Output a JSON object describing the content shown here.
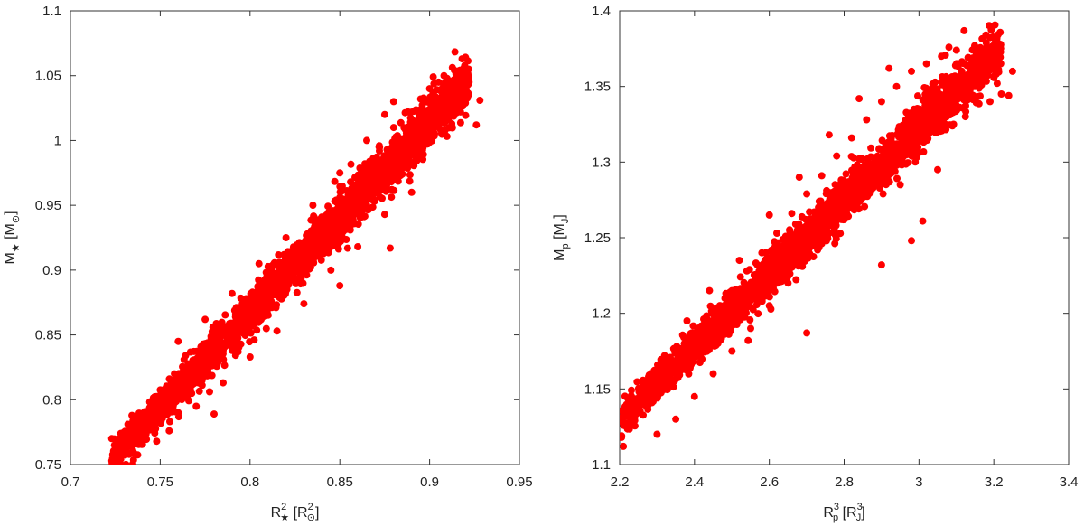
{
  "chart_data": [
    {
      "type": "scatter",
      "panel": "left",
      "title": "",
      "xlabel": {
        "base": "R",
        "sup": "2",
        "sub": "★",
        "unit_base": "R",
        "unit_sup": "2",
        "unit_sub": "⊙"
      },
      "ylabel": {
        "base": "M",
        "sub": "★",
        "unit_base": "M",
        "unit_sub": "⊙"
      },
      "xlim": [
        0.7,
        0.95
      ],
      "ylim": [
        0.75,
        1.1
      ],
      "xticks": [
        "0.7",
        "0.75",
        "0.8",
        "0.85",
        "0.9",
        "0.95"
      ],
      "yticks": [
        "0.75",
        "0.8",
        "0.85",
        "0.9",
        "0.95",
        "1",
        "1.05",
        "1.1"
      ],
      "grid": false,
      "marker_color": "#ff0000",
      "series": [
        {
          "points": [
            [
              0.723,
              0.77
            ],
            [
              0.725,
              0.762
            ],
            [
              0.728,
              0.774
            ],
            [
              0.732,
              0.781
            ],
            [
              0.738,
              0.788
            ],
            [
              0.745,
              0.797
            ],
            [
              0.752,
              0.806
            ],
            [
              0.76,
              0.818
            ],
            [
              0.768,
              0.829
            ],
            [
              0.776,
              0.842
            ],
            [
              0.784,
              0.853
            ],
            [
              0.792,
              0.866
            ],
            [
              0.8,
              0.878
            ],
            [
              0.808,
              0.89
            ],
            [
              0.816,
              0.902
            ],
            [
              0.824,
              0.915
            ],
            [
              0.832,
              0.928
            ],
            [
              0.84,
              0.941
            ],
            [
              0.848,
              0.954
            ],
            [
              0.856,
              0.968
            ],
            [
              0.864,
              0.982
            ],
            [
              0.872,
              0.996
            ],
            [
              0.88,
              1.01
            ],
            [
              0.888,
              1.022
            ],
            [
              0.895,
              1.032
            ],
            [
              0.9,
              1.04
            ],
            [
              0.905,
              1.045
            ],
            [
              0.91,
              1.03
            ],
            [
              0.915,
              1.025
            ],
            [
              0.92,
              1.037
            ],
            [
              0.926,
              1.012
            ],
            [
              0.928,
              1.031
            ],
            [
              0.922,
              1.045
            ],
            [
              0.908,
              1.05
            ],
            [
              0.902,
              1.049
            ],
            [
              0.755,
              0.776
            ],
            [
              0.77,
              0.795
            ],
            [
              0.785,
              0.813
            ],
            [
              0.8,
              0.833
            ],
            [
              0.815,
              0.853
            ],
            [
              0.83,
              0.874
            ],
            [
              0.85,
              0.888
            ],
            [
              0.845,
              0.9
            ],
            [
              0.86,
              0.918
            ],
            [
              0.875,
              0.943
            ],
            [
              0.878,
              0.917
            ],
            [
              0.89,
              0.96
            ],
            [
              0.76,
              0.845
            ],
            [
              0.775,
              0.862
            ],
            [
              0.79,
              0.882
            ],
            [
              0.805,
              0.905
            ],
            [
              0.82,
              0.925
            ],
            [
              0.835,
              0.95
            ],
            [
              0.85,
              0.975
            ],
            [
              0.865,
              1.0
            ],
            [
              0.875,
              1.02
            ],
            [
              0.88,
              1.03
            ],
            [
              0.76,
              0.79
            ],
            [
              0.737,
              0.766
            ],
            [
              0.748,
              0.768
            ],
            [
              0.79,
              0.838
            ],
            [
              0.81,
              0.873
            ],
            [
              0.82,
              0.888
            ],
            [
              0.78,
              0.789
            ]
          ]
        }
      ]
    },
    {
      "type": "scatter",
      "panel": "right",
      "title": "",
      "xlabel": {
        "base": "R",
        "sup": "3",
        "sub": "p",
        "unit_base": "R",
        "unit_sup": "3",
        "unit_sub": "J"
      },
      "ylabel": {
        "base": "M",
        "sub": "p",
        "unit_base": "M",
        "unit_sub": "J"
      },
      "xlim": [
        2.2,
        3.4
      ],
      "ylim": [
        1.1,
        1.4
      ],
      "xticks": [
        "2.2",
        "2.4",
        "2.6",
        "2.8",
        "3",
        "3.2",
        "3.4"
      ],
      "yticks": [
        "1.1",
        "1.15",
        "1.2",
        "1.25",
        "1.3",
        "1.35",
        "1.4"
      ],
      "grid": false,
      "marker_color": "#ff0000",
      "series": [
        {
          "points": [
            [
              2.205,
              1.118
            ],
            [
              2.21,
              1.112
            ],
            [
              2.222,
              1.124
            ],
            [
              2.24,
              1.132
            ],
            [
              2.27,
              1.143
            ],
            [
              2.3,
              1.154
            ],
            [
              2.34,
              1.166
            ],
            [
              2.38,
              1.178
            ],
            [
              2.42,
              1.19
            ],
            [
              2.46,
              1.203
            ],
            [
              2.5,
              1.215
            ],
            [
              2.54,
              1.228
            ],
            [
              2.58,
              1.24
            ],
            [
              2.62,
              1.253
            ],
            [
              2.66,
              1.266
            ],
            [
              2.7,
              1.279
            ],
            [
              2.74,
              1.291
            ],
            [
              2.78,
              1.304
            ],
            [
              2.82,
              1.316
            ],
            [
              2.86,
              1.328
            ],
            [
              2.9,
              1.34
            ],
            [
              2.94,
              1.35
            ],
            [
              2.98,
              1.36
            ],
            [
              3.02,
              1.365
            ],
            [
              3.06,
              1.37
            ],
            [
              3.08,
              1.376
            ],
            [
              3.1,
              1.374
            ],
            [
              3.13,
              1.357
            ],
            [
              3.15,
              1.35
            ],
            [
              3.18,
              1.363
            ],
            [
              3.2,
              1.372
            ],
            [
              3.22,
              1.345
            ],
            [
              3.24,
              1.344
            ],
            [
              3.25,
              1.36
            ],
            [
              3.19,
              1.34
            ],
            [
              3.01,
              1.261
            ],
            [
              2.98,
              1.248
            ],
            [
              2.9,
              1.232
            ],
            [
              2.95,
              1.285
            ],
            [
              2.99,
              1.3
            ],
            [
              3.05,
              1.295
            ],
            [
              2.7,
              1.187
            ],
            [
              2.72,
              1.246
            ],
            [
              2.8,
              1.262
            ],
            [
              2.85,
              1.285
            ],
            [
              2.88,
              1.303
            ],
            [
              2.3,
              1.12
            ],
            [
              2.35,
              1.13
            ],
            [
              2.4,
              1.145
            ],
            [
              2.45,
              1.16
            ],
            [
              2.5,
              1.175
            ],
            [
              2.55,
              1.19
            ],
            [
              2.6,
              1.205
            ],
            [
              2.65,
              1.22
            ],
            [
              2.75,
              1.25
            ],
            [
              2.26,
              1.155
            ],
            [
              2.32,
              1.172
            ],
            [
              2.38,
              1.195
            ],
            [
              2.44,
              1.215
            ],
            [
              2.52,
              1.235
            ],
            [
              2.6,
              1.265
            ],
            [
              2.68,
              1.29
            ],
            [
              2.76,
              1.318
            ],
            [
              2.84,
              1.342
            ],
            [
              2.92,
              1.362
            ]
          ]
        }
      ]
    }
  ]
}
